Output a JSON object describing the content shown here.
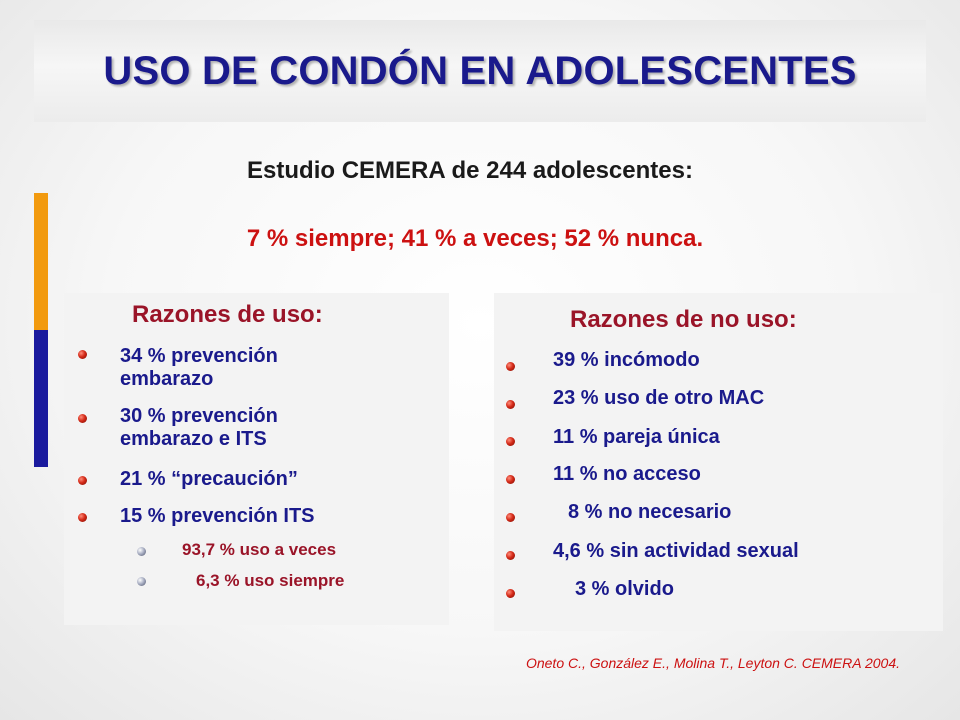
{
  "slide": {
    "title": "USO DE CONDÓN EN ADOLESCENTES",
    "subtitle": "Estudio CEMERA de 244 adolescentes:",
    "stats": "7 % siempre; 41 % a veces; 52 % nunca.",
    "citation": "Oneto C., González E., Molina T., Leyton C. CEMERA 2004.",
    "colors": {
      "title": "#1a1a8c",
      "heading": "#9a1428",
      "stats": "#cc1111",
      "accent_orange": "#f29a0e",
      "accent_blue": "#1a1a9e"
    }
  },
  "reasons_use": {
    "heading": "Razones de uso:",
    "items": [
      {
        "line1": "34 % prevención",
        "line2": "embarazo"
      },
      {
        "line1": "30 % prevención",
        "line2": "embarazo e ITS"
      },
      {
        "line1": "21 % “precaución”",
        "line2": ""
      },
      {
        "line1": "15 % prevención ITS",
        "line2": ""
      }
    ],
    "sub_items": [
      "93,7 % uso a veces",
      "6,3 % uso siempre"
    ]
  },
  "reasons_no_use": {
    "heading": "Razones de no uso:",
    "items": [
      "39 % incómodo",
      "23 % uso de otro MAC",
      "11 % pareja única",
      "11 % no acceso",
      "8 % no necesario",
      "4,6 % sin actividad sexual",
      "3 % olvido"
    ]
  }
}
